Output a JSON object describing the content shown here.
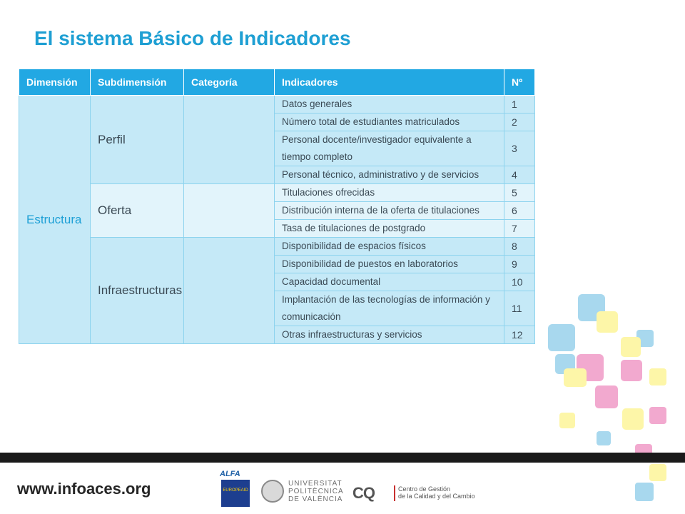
{
  "title": "El sistema Básico de Indicadores",
  "table": {
    "headers": [
      "Dimensión",
      "Subdimensión",
      "Categoría",
      "Indicadores",
      "Nº"
    ],
    "dimension": "Estructura",
    "subdimensions": [
      "Perfil",
      "Oferta",
      "Infraestructuras"
    ],
    "rows": [
      {
        "indicator": "Datos generales",
        "n": "1"
      },
      {
        "indicator": "Número total de estudiantes matriculados",
        "n": "2"
      },
      {
        "indicator": "Personal docente/investigador  equivalente a tiempo completo",
        "n": "3"
      },
      {
        "indicator": "Personal técnico, administrativo y de servicios",
        "n": "4"
      },
      {
        "indicator": "Titulaciones ofrecidas",
        "n": "5"
      },
      {
        "indicator": "Distribución interna de la oferta de titulaciones",
        "n": "6"
      },
      {
        "indicator": "Tasa de titulaciones de postgrado",
        "n": "7"
      },
      {
        "indicator": "Disponibilidad de espacios físicos",
        "n": "8"
      },
      {
        "indicator": "Disponibilidad de puestos en laboratorios",
        "n": "9"
      },
      {
        "indicator": "Capacidad documental",
        "n": "10"
      },
      {
        "indicator": "Implantación de las tecnologías de información y comunicación",
        "n": "11"
      },
      {
        "indicator": "Otras infraestructuras y servicios",
        "n": "12"
      }
    ]
  },
  "footer": {
    "website": "www.infoaces.org",
    "logos": {
      "alfa": "ALFA",
      "europeaid": "EUROPEAID",
      "upv": [
        "UNIVERSITAT",
        "POLITÈCNICA",
        "DE VALÈNCIA"
      ],
      "cq_mark": "CQ",
      "cq_name": [
        "Centro de Gestión",
        "de la Calidad y del Cambio"
      ]
    }
  },
  "colors": {
    "title": "#1e9fd3",
    "header_bg": "#22a8e3",
    "cell_blue": "#c5e9f7",
    "cell_light": "#e2f4fb",
    "square_blue": "#a8d8ee",
    "square_yellow": "#fdf6a8",
    "square_pink": "#f2a9cf"
  }
}
